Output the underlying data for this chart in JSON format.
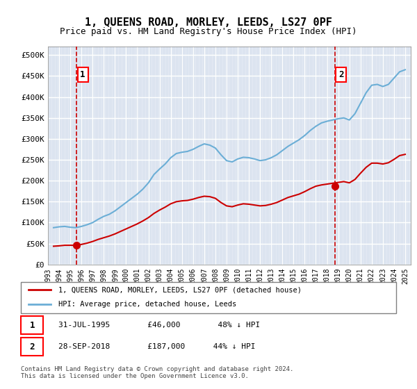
{
  "title": "1, QUEENS ROAD, MORLEY, LEEDS, LS27 0PF",
  "subtitle": "Price paid vs. HM Land Registry's House Price Index (HPI)",
  "xlim_start": 1993.0,
  "xlim_end": 2025.5,
  "ylim": [
    0,
    520000
  ],
  "yticks": [
    0,
    50000,
    100000,
    150000,
    200000,
    250000,
    300000,
    350000,
    400000,
    450000,
    500000
  ],
  "ytick_labels": [
    "£0",
    "£50K",
    "£100K",
    "£150K",
    "£200K",
    "£250K",
    "£300K",
    "£350K",
    "£400K",
    "£450K",
    "£500K"
  ],
  "xtick_years": [
    1993,
    1994,
    1995,
    1996,
    1997,
    1998,
    1999,
    2000,
    2001,
    2002,
    2003,
    2004,
    2005,
    2006,
    2007,
    2008,
    2009,
    2010,
    2011,
    2012,
    2013,
    2014,
    2015,
    2016,
    2017,
    2018,
    2019,
    2020,
    2021,
    2022,
    2023,
    2024,
    2025
  ],
  "purchase1_x": 1995.58,
  "purchase1_y": 46000,
  "purchase2_x": 2018.74,
  "purchase2_y": 187000,
  "hpi_color": "#6baed6",
  "price_color": "#cc0000",
  "vline_color": "#cc0000",
  "grid_color": "#cccccc",
  "hatch_color": "#d0d8e8",
  "bg_color": "#e8eef8",
  "legend_label_price": "1, QUEENS ROAD, MORLEY, LEEDS, LS27 0PF (detached house)",
  "legend_label_hpi": "HPI: Average price, detached house, Leeds",
  "annotation1_label": "1",
  "annotation2_label": "2",
  "note1": "1   31-JUL-1995        £46,000        48% ↓ HPI",
  "note2": "2   28-SEP-2018        £187,000      44% ↓ HPI",
  "copyright": "Contains HM Land Registry data © Crown copyright and database right 2024.\nThis data is licensed under the Open Government Licence v3.0."
}
